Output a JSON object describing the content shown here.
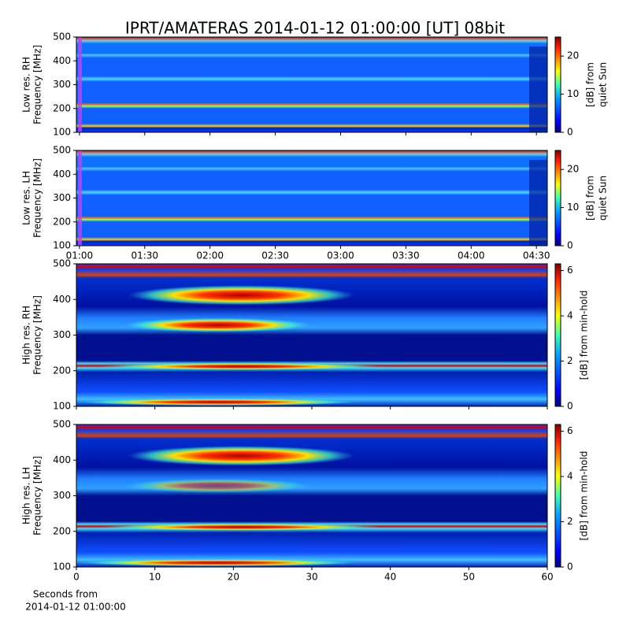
{
  "title": "IPRT/AMATERAS 2014-01-12 01:00:00 [UT]   08bit",
  "chart_data": [
    {
      "type": "heatmap",
      "ylabel": [
        "Low res. RH",
        "Frequency [MHz]"
      ],
      "ylim": [
        100,
        500
      ],
      "yticks": [
        100,
        200,
        300,
        400,
        500
      ],
      "xlim": [
        -1.4,
        215
      ],
      "colorbar_label": [
        "[dB] from",
        "quiet Sun"
      ],
      "clim": [
        0,
        25
      ],
      "cticks": [
        0,
        10,
        20
      ]
    },
    {
      "type": "heatmap",
      "ylabel": [
        "Low res. LH",
        "Frequency [MHz]"
      ],
      "ylim": [
        100,
        500
      ],
      "yticks": [
        100,
        200,
        300,
        400,
        500
      ],
      "xlim": [
        -1.4,
        215
      ],
      "xticks": [
        {
          "value": 0,
          "label": "01:00"
        },
        {
          "value": 30,
          "label": "01:30"
        },
        {
          "value": 60,
          "label": "02:00"
        },
        {
          "value": 90,
          "label": "02:30"
        },
        {
          "value": 120,
          "label": "03:00"
        },
        {
          "value": 150,
          "label": "03:30"
        },
        {
          "value": 180,
          "label": "04:00"
        },
        {
          "value": 210,
          "label": "04:30"
        }
      ],
      "colorbar_label": [
        "[dB] from",
        "quiet Sun"
      ],
      "clim": [
        0,
        25
      ],
      "cticks": [
        0,
        10,
        20
      ]
    },
    {
      "type": "heatmap",
      "ylabel": [
        "High res. RH",
        "Frequency [MHz]"
      ],
      "ylim": [
        100,
        500
      ],
      "yticks": [
        100,
        200,
        300,
        400,
        500
      ],
      "xlim": [
        0,
        60
      ],
      "colorbar_label": [
        "[dB] from min-hold"
      ],
      "clim": [
        0,
        6.3
      ],
      "cticks": [
        0,
        2,
        4,
        6
      ]
    },
    {
      "type": "heatmap",
      "ylabel": [
        "High res. LH",
        "Frequency [MHz]"
      ],
      "ylim": [
        100,
        500
      ],
      "yticks": [
        100,
        200,
        300,
        400,
        500
      ],
      "xlim": [
        0,
        60
      ],
      "xticks": [
        0,
        10,
        20,
        30,
        40,
        50,
        60
      ],
      "xlabel": [
        "Seconds from",
        "2014-01-12 01:00:00"
      ],
      "colorbar_label": [
        "[dB] from min-hold"
      ],
      "clim": [
        0,
        6.3
      ],
      "cticks": [
        0,
        2,
        4,
        6
      ]
    }
  ]
}
